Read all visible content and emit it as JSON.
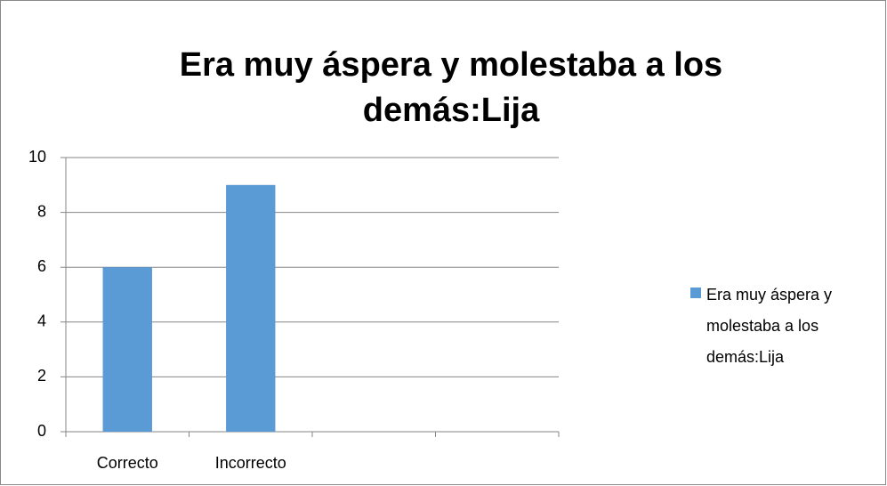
{
  "chart_data": {
    "type": "bar",
    "title": "Era muy áspera y molestaba a los demás:Lija",
    "categories": [
      "Correcto",
      "Incorrecto",
      null,
      null
    ],
    "series": [
      {
        "name": "Era muy áspera y molestaba a los demás:Lija",
        "color": "#5b9bd5",
        "values": [
          6,
          9,
          null,
          null
        ]
      }
    ],
    "ylim": [
      0,
      10
    ],
    "yticks": [
      0,
      2,
      4,
      6,
      8,
      10
    ],
    "grid": true,
    "legend": "right"
  }
}
